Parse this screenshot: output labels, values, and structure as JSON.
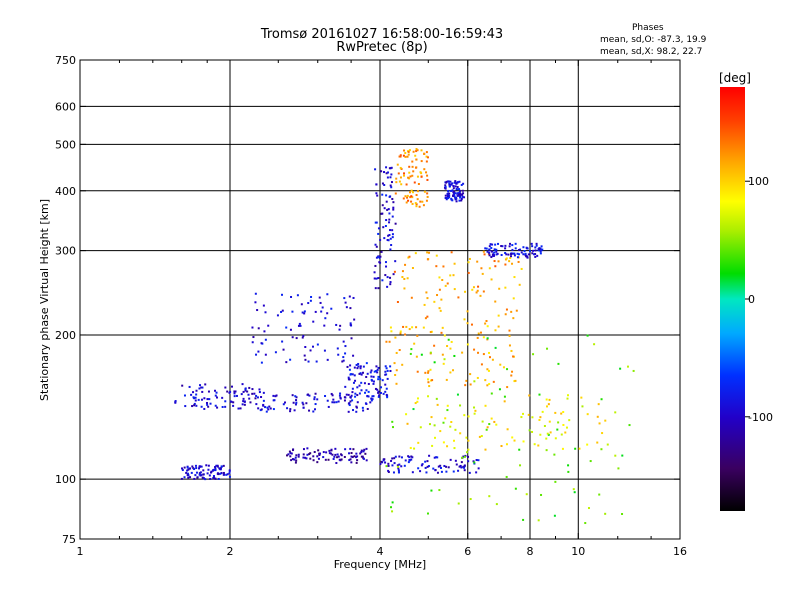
{
  "title": {
    "line1": "Tromsø 20161027 16:58:00-16:59:43",
    "line2": "RwPretec (8p)"
  },
  "phases": {
    "title": "Phases",
    "o_line": "mean, sd,O: -87.3, 19.9",
    "x_line": "mean, sd,X:  98.2, 22.7"
  },
  "colorbar": {
    "label": "[deg]",
    "range": [
      -180,
      180
    ],
    "ticks": [
      {
        "value": 100,
        "label": "100"
      },
      {
        "value": 0,
        "label": "0"
      },
      {
        "value": -100,
        "label": "-100"
      }
    ]
  },
  "chart_data": {
    "type": "scatter",
    "xscale": "log",
    "yscale": "log",
    "xlabel": "Frequency [MHz]",
    "ylabel": "Stationary phase Virtual Height [km]",
    "xlim": [
      1,
      16
    ],
    "ylim": [
      75,
      750
    ],
    "xticks": [
      {
        "value": 1,
        "label": "1"
      },
      {
        "value": 2,
        "label": "2"
      },
      {
        "value": 4,
        "label": "4"
      },
      {
        "value": 6,
        "label": "6"
      },
      {
        "value": 8,
        "label": "8"
      },
      {
        "value": 10,
        "label": "10"
      },
      {
        "value": 16,
        "label": "16"
      }
    ],
    "yticks": [
      {
        "value": 75,
        "label": "75"
      },
      {
        "value": 100,
        "label": "100"
      },
      {
        "value": 200,
        "label": "200"
      },
      {
        "value": 300,
        "label": "300"
      },
      {
        "value": 400,
        "label": "400"
      },
      {
        "value": 500,
        "label": "500"
      },
      {
        "value": 600,
        "label": "600"
      },
      {
        "value": 750,
        "label": "750"
      }
    ],
    "xgrid": [
      2,
      4,
      6,
      8,
      10
    ],
    "ygrid": [
      100,
      200,
      300,
      400,
      500,
      600
    ],
    "color_axis": "phase [deg]",
    "clusters": [
      {
        "desc": "O-mode low trace",
        "f": [
          1.55,
          2.3
        ],
        "h": [
          140,
          158
        ],
        "phase": -97
      },
      {
        "desc": "O-mode trace",
        "f": [
          2.3,
          3.9
        ],
        "h": [
          138,
          152
        ],
        "phase": -92
      },
      {
        "desc": "O-mode F2 rise",
        "f": [
          3.4,
          4.2
        ],
        "h": [
          148,
          175
        ],
        "phase": -88
      },
      {
        "desc": "lower layer",
        "f": [
          2.6,
          3.8
        ],
        "h": [
          108,
          116
        ],
        "phase": -112
      },
      {
        "desc": "lower layer",
        "f": [
          4.0,
          6.4
        ],
        "h": [
          103,
          112
        ],
        "phase": -95
      },
      {
        "desc": "1.6-2.0 MHz low echoes",
        "f": [
          1.6,
          2.0
        ],
        "h": [
          100,
          107
        ],
        "phase": -95
      },
      {
        "desc": "F2 O upper",
        "f": [
          2.2,
          3.6
        ],
        "h": [
          175,
          245
        ],
        "phase": -92
      },
      {
        "desc": "F2 O high",
        "f": [
          3.9,
          4.3
        ],
        "h": [
          250,
          450
        ],
        "phase": -95
      },
      {
        "desc": "X-mode trace",
        "f": [
          4.1,
          7.5
        ],
        "h": [
          155,
          210
        ],
        "phase": 110
      },
      {
        "desc": "X-mode trace",
        "f": [
          4.2,
          7.8
        ],
        "h": [
          210,
          300
        ],
        "phase": 118
      },
      {
        "desc": "X-mode high",
        "f": [
          4.3,
          5.0
        ],
        "h": [
          370,
          490
        ],
        "phase": 125
      },
      {
        "desc": "O-mode high",
        "f": [
          5.4,
          5.9
        ],
        "h": [
          380,
          420
        ],
        "phase": -92
      },
      {
        "desc": "O-mode band",
        "f": [
          6.5,
          8.5
        ],
        "h": [
          290,
          310
        ],
        "phase": -90
      },
      {
        "desc": "scattered echoes",
        "f": [
          4.0,
          13.0
        ],
        "h": [
          80,
          200
        ],
        "phase": 40
      },
      {
        "desc": "scattered echoes",
        "f": [
          4.5,
          11.5
        ],
        "h": [
          115,
          150
        ],
        "phase": 90
      }
    ]
  }
}
